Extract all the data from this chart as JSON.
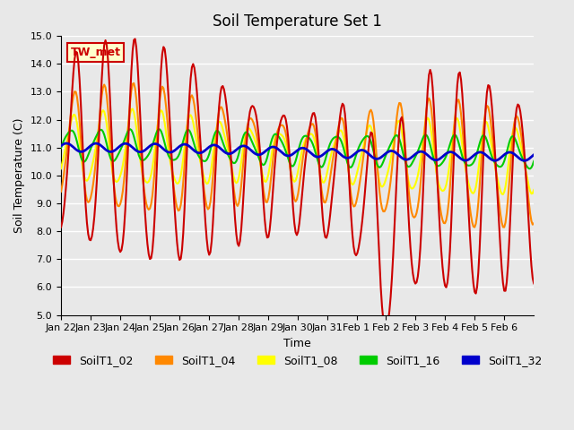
{
  "title": "Soil Temperature Set 1",
  "xlabel": "Time",
  "ylabel": "Soil Temperature (C)",
  "ylim": [
    5.0,
    15.0
  ],
  "yticks": [
    5.0,
    6.0,
    7.0,
    8.0,
    9.0,
    10.0,
    11.0,
    12.0,
    13.0,
    14.0,
    15.0
  ],
  "xtick_labels": [
    "Jan 22",
    "Jan 23",
    "Jan 24",
    "Jan 25",
    "Jan 26",
    "Jan 27",
    "Jan 28",
    "Jan 29",
    "Jan 30",
    "Jan 31",
    "Feb 1",
    "Feb 2",
    "Feb 3",
    "Feb 4",
    "Feb 5",
    "Feb 6"
  ],
  "annotation_text": "TW_met",
  "annotation_box_color": "#ffffcc",
  "annotation_box_edge": "#cc0000",
  "annotation_text_color": "#cc0000",
  "bg_color": "#e8e8e8",
  "plot_bg_color": "#e8e8e8",
  "grid_color": "#ffffff",
  "series_colors": {
    "SoilT1_02": "#cc0000",
    "SoilT1_04": "#ff8800",
    "SoilT1_08": "#ffff00",
    "SoilT1_16": "#00cc00",
    "SoilT1_32": "#0000cc"
  },
  "series_lw": {
    "SoilT1_02": 1.5,
    "SoilT1_04": 1.5,
    "SoilT1_08": 1.5,
    "SoilT1_16": 1.5,
    "SoilT1_32": 2.0
  }
}
